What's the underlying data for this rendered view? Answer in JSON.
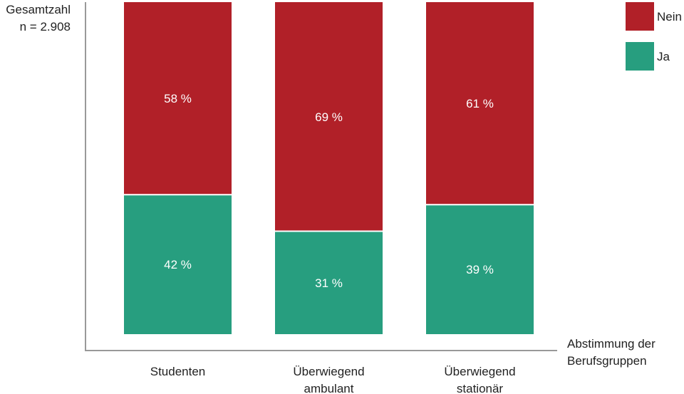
{
  "chart_data": {
    "type": "bar",
    "stacked": true,
    "categories": [
      [
        "Studenten"
      ],
      [
        "Überwiegend",
        "ambulant"
      ],
      [
        "Überwiegend",
        "stationär"
      ]
    ],
    "series": [
      {
        "name": "Ja",
        "color": "#279E7F",
        "values": [
          42,
          31,
          39
        ],
        "labels": [
          "42 %",
          "31 %",
          "39 %"
        ]
      },
      {
        "name": "Nein",
        "color": "#B12028",
        "values": [
          58,
          69,
          61
        ],
        "labels": [
          "58 %",
          "69 %",
          "61 %"
        ]
      }
    ],
    "ylabel": [
      "Gesamtzahl",
      "n = 2.908"
    ],
    "xlabel": [
      "Abstimmung der",
      "Berufsgruppen"
    ],
    "ylim": [
      0,
      100
    ],
    "legend_position": "top-right",
    "legend_order": [
      "Nein",
      "Ja"
    ],
    "axis_color": "#999999",
    "grid": false
  }
}
